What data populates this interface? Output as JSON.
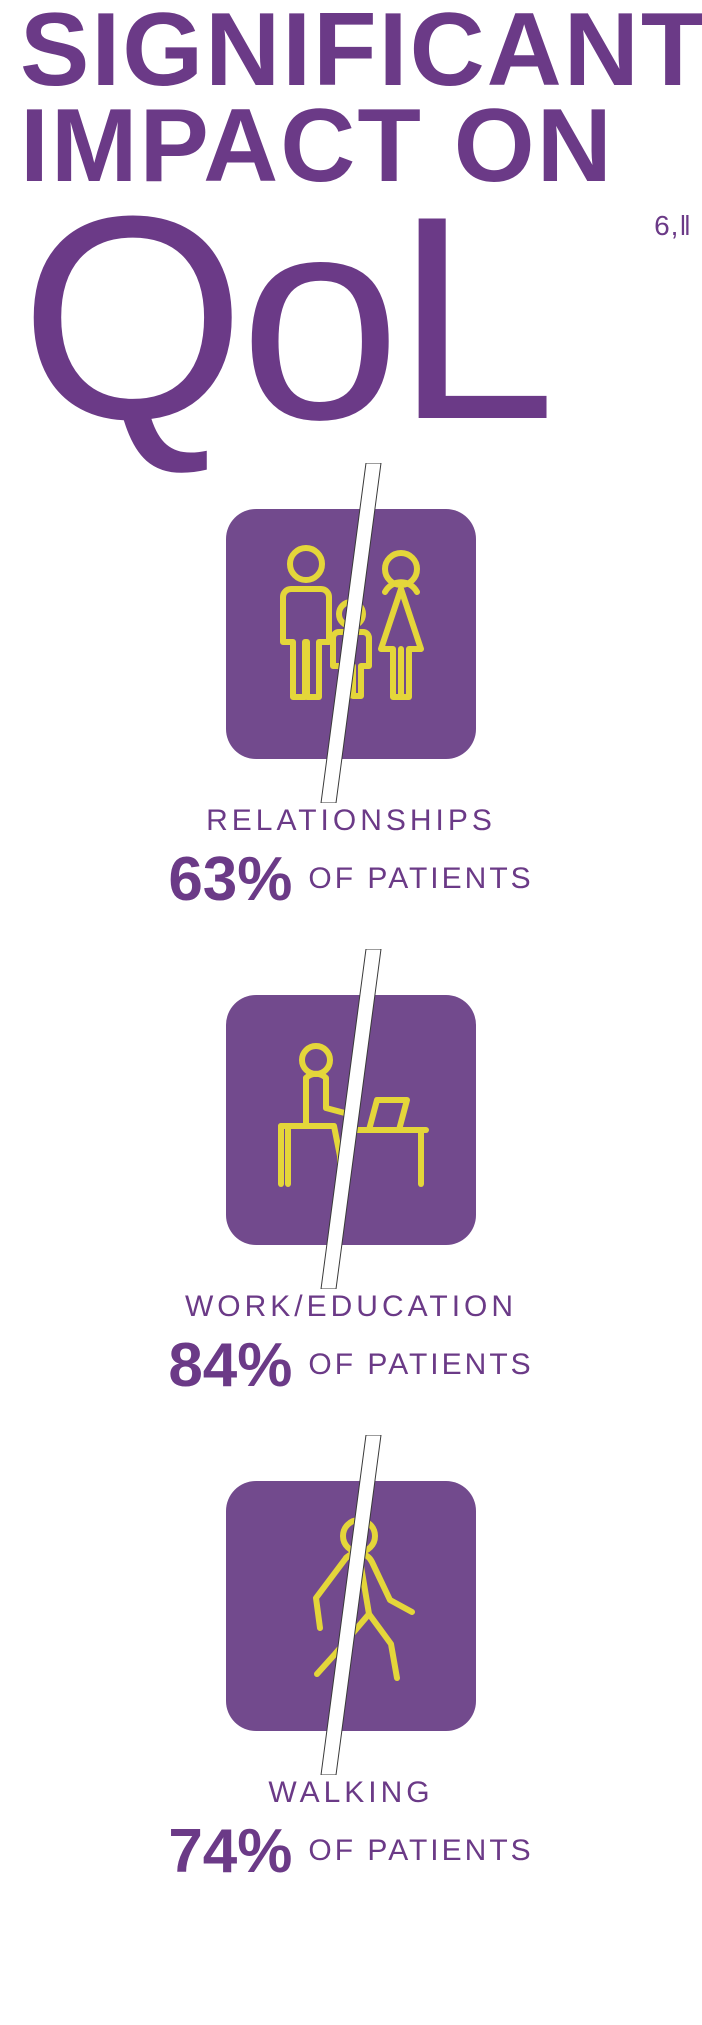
{
  "colors": {
    "purple": "#6b3a87",
    "icon_bg": "#724a8d",
    "icon_stroke": "#e4d63a",
    "slash_fill": "#ffffff",
    "slash_stroke": "#3a3a3a"
  },
  "title": {
    "line1": "SIGNIFICANT",
    "line2": "IMPACT ON",
    "line3": "QoL",
    "superscript": "6,‖"
  },
  "items": [
    {
      "icon": "family",
      "label": "RELATIONSHIPS",
      "percent": "63%",
      "suffix": "OF PATIENTS"
    },
    {
      "icon": "desk",
      "label": "WORK/EDUCATION",
      "percent": "84%",
      "suffix": "OF PATIENTS"
    },
    {
      "icon": "walking",
      "label": "WALKING",
      "percent": "74%",
      "suffix": "OF PATIENTS"
    }
  ],
  "style": {
    "title_font_size_lines": 104,
    "title_font_size_qol": 290,
    "label_font_size": 30,
    "percent_font_size": 62,
    "suffix_font_size": 30,
    "icon_box_size": 250,
    "icon_box_radius": 30,
    "icon_stroke_width": 6
  }
}
